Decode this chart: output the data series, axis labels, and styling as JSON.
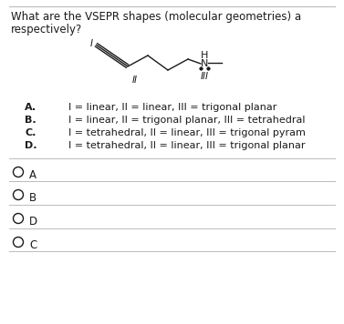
{
  "title_line1": "What are the VSEPR shapes (molecular geometries) a",
  "title_line2": "respectively?",
  "options": [
    {
      "label": "A.",
      "text": "I = linear, II = linear, III = trigonal planar"
    },
    {
      "label": "B.",
      "text": "I = linear, II = trigonal planar, III = tetrahedral"
    },
    {
      "label": "C.",
      "text": "I = tetrahedral, II = linear, III = trigonal pyram"
    },
    {
      "label": "D.",
      "text": "I = tetrahedral, II = linear, III = trigonal planar"
    }
  ],
  "answer_choices": [
    "A",
    "B",
    "D",
    "C"
  ],
  "bg_color": "#ffffff",
  "text_color": "#1a1a1a",
  "separator_color": "#bbbbbb",
  "font_size_title": 8.5,
  "font_size_options": 8.0,
  "font_size_answers": 8.5,
  "font_size_mol": 7.5
}
